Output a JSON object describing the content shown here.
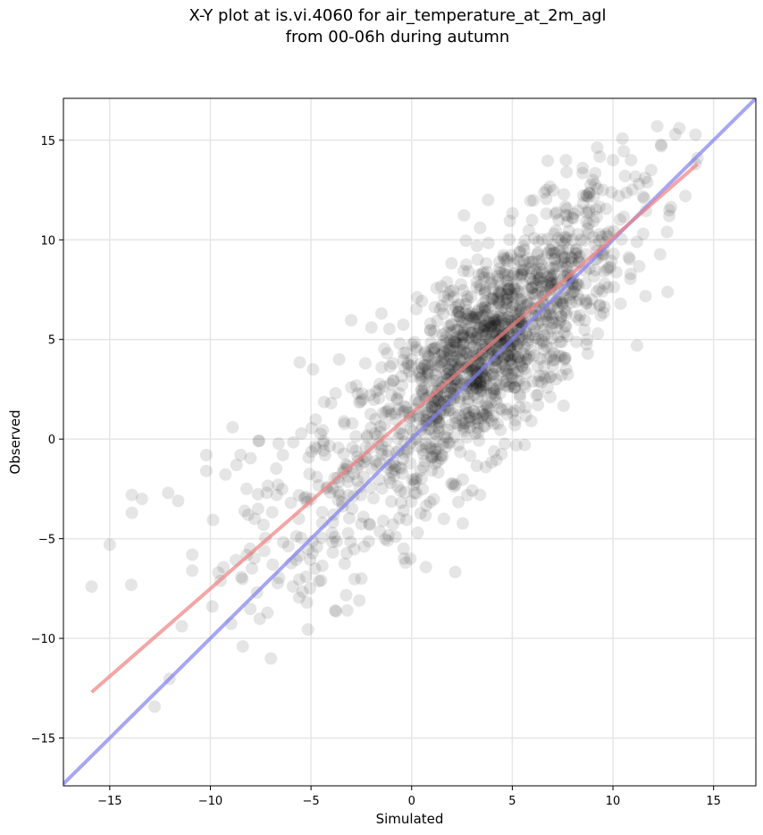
{
  "chart_data": {
    "type": "scatter",
    "title_line1": "X-Y plot at is.vi.4060 for air_temperature_at_2m_agl",
    "title_line2": "from 00-06h during autumn",
    "xlabel": "Simulated",
    "ylabel": "Observed",
    "xlim": [
      -17.3,
      17.1
    ],
    "ylim": [
      -17.4,
      17.1
    ],
    "xticks": [
      -15,
      -10,
      -5,
      0,
      5,
      10,
      15
    ],
    "yticks": [
      -15,
      -10,
      -5,
      0,
      5,
      10,
      15
    ],
    "xtick_labels": [
      "−15",
      "−10",
      "−5",
      "0",
      "5",
      "10",
      "15"
    ],
    "ytick_labels": [
      "−15",
      "−10",
      "−5",
      "0",
      "5",
      "10",
      "15"
    ],
    "grid": true,
    "point_color": "#000000",
    "point_alpha": 0.1,
    "sample_points": [
      [
        -15.9,
        -7.4
      ],
      [
        -15.0,
        -5.3
      ],
      [
        -13.9,
        -2.8
      ],
      [
        -13.9,
        -3.7
      ],
      [
        -13.4,
        -3.0
      ],
      [
        -12.1,
        -2.7
      ],
      [
        -11.6,
        -3.1
      ],
      [
        -10.9,
        -5.8
      ],
      [
        -10.9,
        -6.6
      ],
      [
        -10.2,
        -0.8
      ],
      [
        -10.2,
        -1.6
      ],
      [
        -9.9,
        -8.4
      ],
      [
        -9.6,
        -6.7
      ],
      [
        -8.7,
        -1.3
      ],
      [
        -8.5,
        -0.8
      ],
      [
        -8.3,
        -3.6
      ],
      [
        -8.2,
        -2.5
      ],
      [
        -7.8,
        -4.0
      ],
      [
        -7.6,
        -0.1
      ],
      [
        -7.2,
        -2.7
      ],
      [
        -6.9,
        -6.3
      ],
      [
        -6.7,
        -2.8
      ],
      [
        -6.4,
        -0.8
      ],
      [
        -6.0,
        -3.2
      ],
      [
        -5.9,
        -7.4
      ],
      [
        -5.6,
        -4.0
      ],
      [
        -5.2,
        -8.2
      ],
      [
        -5.0,
        -3.0
      ],
      [
        -4.9,
        3.5
      ],
      [
        -4.8,
        -6.5
      ],
      [
        -4.5,
        -7.1
      ],
      [
        -4.3,
        -0.8
      ],
      [
        -4.0,
        1.8
      ],
      [
        -3.8,
        -8.6
      ],
      [
        -3.6,
        4.0
      ],
      [
        -3.2,
        -8.6
      ],
      [
        -3.0,
        2.6
      ],
      [
        -2.6,
        -8.1
      ],
      [
        -2.5,
        -7.0
      ],
      [
        -2.3,
        3.8
      ],
      [
        -2.0,
        5.6
      ],
      [
        -1.8,
        1.0
      ],
      [
        -1.5,
        6.3
      ],
      [
        -1.2,
        -5.1
      ],
      [
        -1.0,
        2.2
      ],
      [
        -0.8,
        -4.9
      ],
      [
        -0.6,
        4.8
      ],
      [
        -0.4,
        -5.5
      ],
      [
        -0.3,
        -6.2
      ],
      [
        -0.2,
        3.8
      ],
      [
        0.0,
        4.0
      ],
      [
        0.2,
        1.5
      ],
      [
        0.3,
        -4.7
      ],
      [
        0.5,
        2.5
      ],
      [
        0.6,
        -1.4
      ],
      [
        0.8,
        3.5
      ],
      [
        1.0,
        4.5
      ],
      [
        1.2,
        1.5
      ],
      [
        1.3,
        2.0
      ],
      [
        1.5,
        1.8
      ],
      [
        1.6,
        -4.0
      ],
      [
        1.8,
        3.0
      ],
      [
        2.0,
        2.3
      ],
      [
        2.2,
        0.8
      ],
      [
        2.3,
        3.6
      ],
      [
        2.5,
        4.2
      ],
      [
        2.6,
        2.2
      ],
      [
        2.8,
        5.5
      ],
      [
        3.0,
        3.0
      ],
      [
        3.1,
        1.4
      ],
      [
        3.2,
        2.8
      ],
      [
        3.4,
        10.6
      ],
      [
        3.5,
        4.2
      ],
      [
        3.6,
        3.5
      ],
      [
        3.8,
        12.0
      ],
      [
        3.9,
        5.0
      ],
      [
        4.0,
        4.5
      ],
      [
        4.1,
        2.5
      ],
      [
        4.2,
        6.0
      ],
      [
        4.4,
        5.2
      ],
      [
        4.5,
        3.8
      ],
      [
        4.6,
        4.8
      ],
      [
        4.8,
        7.0
      ],
      [
        5.0,
        5.6
      ],
      [
        5.1,
        2.6
      ],
      [
        5.3,
        6.0
      ],
      [
        5.5,
        5.0
      ],
      [
        5.6,
        9.5
      ],
      [
        5.8,
        7.5
      ],
      [
        6.0,
        6.2
      ],
      [
        6.1,
        4.2
      ],
      [
        6.3,
        8.0
      ],
      [
        6.5,
        6.8
      ],
      [
        6.7,
        12.5
      ],
      [
        6.9,
        7.5
      ],
      [
        7.1,
        9.0
      ],
      [
        7.3,
        11.0
      ],
      [
        7.5,
        8.0
      ],
      [
        7.7,
        13.4
      ],
      [
        8.0,
        10.0
      ],
      [
        8.2,
        9.5
      ],
      [
        8.5,
        13.6
      ],
      [
        8.8,
        11.5
      ],
      [
        9.0,
        13.0
      ],
      [
        9.2,
        7.4
      ],
      [
        9.5,
        12.5
      ],
      [
        9.8,
        10.4
      ],
      [
        10.0,
        14.0
      ],
      [
        10.3,
        12.2
      ],
      [
        10.6,
        13.2
      ],
      [
        10.9,
        14.0
      ],
      [
        11.3,
        12.8
      ],
      [
        11.6,
        13.1
      ],
      [
        11.9,
        13.5
      ],
      [
        12.2,
        15.7
      ],
      [
        12.4,
        14.7
      ],
      [
        12.8,
        11.2
      ],
      [
        13.1,
        15.3
      ],
      [
        13.3,
        15.6
      ],
      [
        13.6,
        12.2
      ],
      [
        14.1,
        13.8
      ],
      [
        14.2,
        14.1
      ]
    ],
    "fit_line": {
      "x": [
        -15.9,
        14.2
      ],
      "y": [
        -12.7,
        13.8
      ],
      "color": "#f08080"
    },
    "identity_line": {
      "x": [
        -17.3,
        17.1
      ],
      "y": [
        -17.3,
        17.1
      ],
      "color": "#8080f0"
    }
  }
}
